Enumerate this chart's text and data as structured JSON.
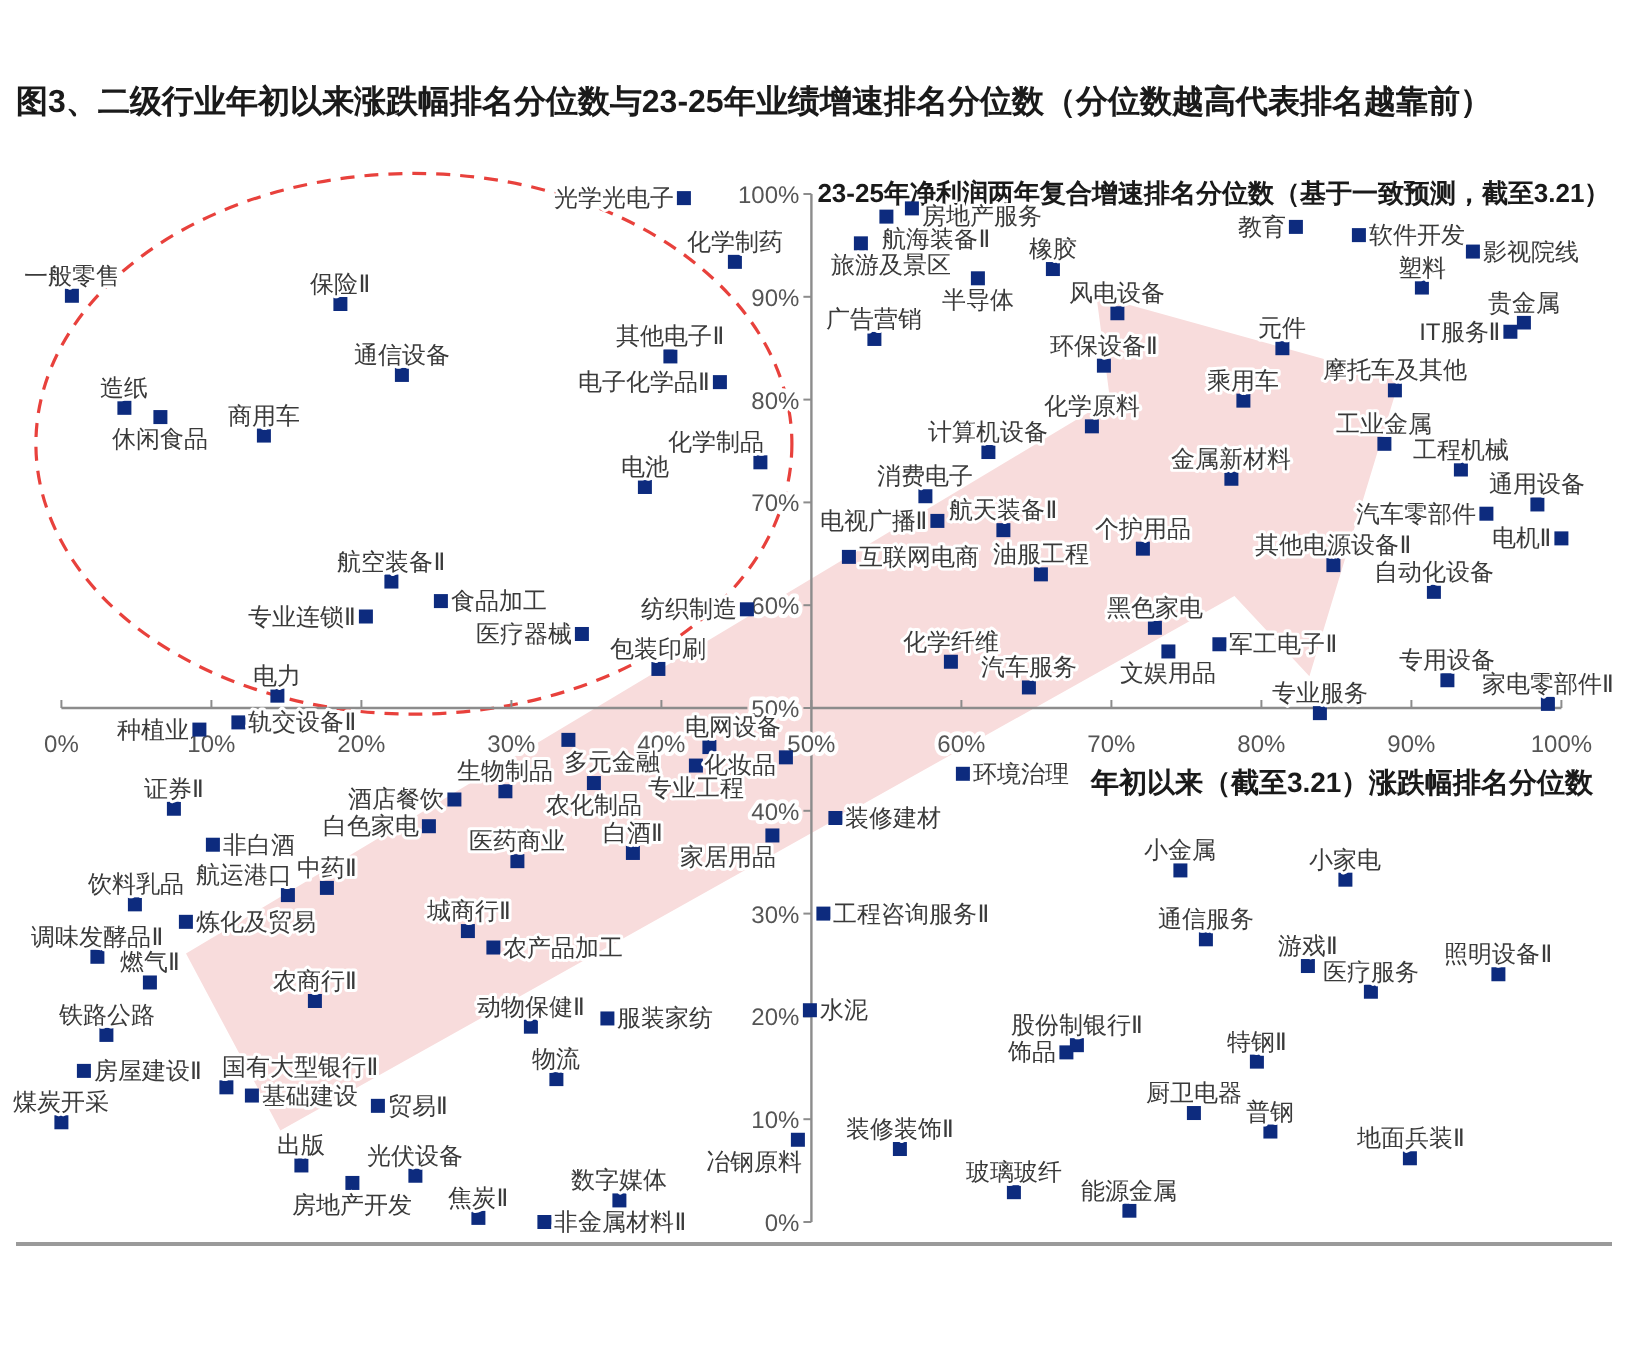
{
  "chart_data": {
    "type": "scatter",
    "title": "图3、二级行业年初以来涨跌幅排名分位数与23-25年业绩增速排名分位数（分位数越高代表排名越靠前）",
    "xlabel": "年初以来（截至3.21）涨跌幅排名分位数",
    "ylabel": "23-25年净利润两年复合增速排名分位数（基于一致预测，截至3.21）",
    "xlim": [
      0,
      100
    ],
    "ylim": [
      0,
      100
    ],
    "xticks": [
      {
        "value": 0,
        "label": "0%"
      },
      {
        "value": 10,
        "label": "10%"
      },
      {
        "value": 20,
        "label": "20%"
      },
      {
        "value": 30,
        "label": "30%"
      },
      {
        "value": 40,
        "label": "40%"
      },
      {
        "value": 50,
        "label": "50%"
      },
      {
        "value": 60,
        "label": "60%"
      },
      {
        "value": 70,
        "label": "70%"
      },
      {
        "value": 80,
        "label": "80%"
      },
      {
        "value": 90,
        "label": "90%"
      },
      {
        "value": 100,
        "label": "100%"
      }
    ],
    "yticks": [
      {
        "value": 0,
        "label": "0%"
      },
      {
        "value": 10,
        "label": "10%"
      },
      {
        "value": 20,
        "label": "20%"
      },
      {
        "value": 30,
        "label": "30%"
      },
      {
        "value": 40,
        "label": "40%"
      },
      {
        "value": 50,
        "label": "50%"
      },
      {
        "value": 60,
        "label": "60%"
      },
      {
        "value": 70,
        "label": "70%"
      },
      {
        "value": 80,
        "label": "80%"
      },
      {
        "value": 90,
        "label": "90%"
      },
      {
        "value": 100,
        "label": "100%"
      }
    ],
    "marker": "square",
    "color": "#0d2b7e",
    "x": [
      0.7,
      18.6,
      22.7,
      4.2,
      6.6,
      13.5,
      22.0,
      25.3,
      20.3,
      14.4,
      34.7,
      39.8,
      45.7,
      38.9,
      46.6,
      40.6,
      43.9,
      44.9,
      41.5,
      55.0,
      56.7,
      53.3,
      61.1,
      66.1,
      54.2,
      70.4,
      69.5,
      68.7,
      61.8,
      57.6,
      58.4,
      52.5,
      62.8,
      65.3,
      59.3,
      64.5,
      73.8,
      72.9,
      72.1,
      78.0,
      78.8,
      81.4,
      82.3,
      86.5,
      94.1,
      90.7,
      97.5,
      96.6,
      88.9,
      88.2,
      93.3,
      98.4,
      95.0,
      100,
      84.8,
      91.5,
      77.2,
      83.9,
      92.4,
      99.1,
      9.2,
      11.8,
      33.8,
      43.2,
      48.3,
      42.3,
      35.5,
      7.5,
      10.1,
      26.2,
      29.6,
      24.5,
      30.4,
      38.1,
      47.4,
      4.9,
      8.3,
      15.1,
      17.7,
      2.4,
      5.9,
      27.1,
      28.8,
      16.9,
      3.0,
      31.3,
      36.4,
      1.5,
      11.0,
      12.7,
      21.1,
      33.0,
      0,
      16.0,
      19.4,
      23.6,
      27.8,
      32.2,
      37.2,
      51.6,
      60.1,
      50.8,
      49.9,
      49.1,
      55.9,
      63.5,
      67.0,
      67.7,
      74.6,
      85.6,
      76.3,
      83.1,
      87.3,
      95.8,
      79.7,
      75.5,
      80.6,
      89.9,
      71.2
    ],
    "values": [
      90.1,
      89.3,
      82.4,
      79.2,
      78.3,
      76.5,
      62.3,
      60.4,
      58.9,
      51.2,
      57.2,
      53.8,
      59.6,
      71.5,
      73.9,
      84.2,
      81.7,
      93.4,
      99.6,
      97.8,
      98.6,
      95.2,
      91.8,
      92.7,
      85.9,
      88.4,
      83.3,
      77.4,
      74.9,
      70.6,
      68.2,
      64.7,
      67.3,
      63.0,
      54.5,
      52.0,
      55.5,
      57.8,
      65.5,
      72.3,
      79.9,
      85.0,
      96.8,
      96.0,
      94.4,
      90.9,
      87.5,
      86.6,
      80.9,
      75.7,
      73.2,
      69.8,
      68.9,
      66.5,
      63.9,
      61.3,
      56.2,
      49.5,
      52.7,
      50.4,
      47.9,
      48.6,
      46.9,
      46.2,
      45.2,
      44.4,
      42.7,
      40.2,
      36.7,
      41.1,
      41.9,
      38.5,
      35.1,
      35.9,
      37.6,
      30.9,
      29.2,
      31.8,
      32.5,
      25.8,
      23.3,
      28.3,
      26.7,
      21.5,
      18.2,
      19.0,
      19.8,
      14.7,
      13.1,
      12.3,
      11.3,
      13.9,
      9.7,
      5.5,
      3.8,
      4.5,
      0.4,
      0,
      2.1,
      39.3,
      43.6,
      30.0,
      20.6,
      8.0,
      7.1,
      2.9,
      16.5,
      17.2,
      34.2,
      33.3,
      27.5,
      24.9,
      22.4,
      24.1,
      15.6,
      10.6,
      8.8,
      6.2,
      1.1
    ],
    "annotations": [
      {
        "text": "一般零售",
        "x": 0.7,
        "y": 90.1
      },
      {
        "text": "保险Ⅱ",
        "x": 18.6,
        "y": 89.3
      },
      {
        "text": "通信设备",
        "x": 22.7,
        "y": 82.4
      },
      {
        "text": "造纸",
        "x": 4.2,
        "y": 79.2
      },
      {
        "text": "休闲食品",
        "x": 6.6,
        "y": 78.3
      },
      {
        "text": "商用车",
        "x": 13.5,
        "y": 76.5
      },
      {
        "text": "航空装备Ⅱ",
        "x": 22.0,
        "y": 62.3
      },
      {
        "text": "食品加工",
        "x": 25.3,
        "y": 60.4
      },
      {
        "text": "专业连锁Ⅱ",
        "x": 20.3,
        "y": 58.9
      },
      {
        "text": "电力",
        "x": 14.4,
        "y": 51.2
      },
      {
        "text": "医疗器械",
        "x": 34.7,
        "y": 57.2
      },
      {
        "text": "包装印刷",
        "x": 39.8,
        "y": 53.8
      },
      {
        "text": "纺织制造",
        "x": 45.7,
        "y": 59.6
      },
      {
        "text": "电池",
        "x": 38.9,
        "y": 71.5
      },
      {
        "text": "化学制品",
        "x": 46.6,
        "y": 73.9
      },
      {
        "text": "其他电子Ⅱ",
        "x": 40.6,
        "y": 84.2
      },
      {
        "text": "电子化学品Ⅱ",
        "x": 43.9,
        "y": 81.7
      },
      {
        "text": "化学制药",
        "x": 44.9,
        "y": 93.4
      },
      {
        "text": "光学光电子",
        "x": 41.5,
        "y": 99.6
      },
      {
        "text": "航海装备Ⅱ",
        "x": 55.0,
        "y": 97.8
      },
      {
        "text": "房地产服务",
        "x": 56.7,
        "y": 98.6
      },
      {
        "text": "旅游及景区",
        "x": 53.3,
        "y": 95.2
      },
      {
        "text": "半导体",
        "x": 61.1,
        "y": 91.8
      },
      {
        "text": "橡胶",
        "x": 66.1,
        "y": 92.7
      },
      {
        "text": "广告营销",
        "x": 54.2,
        "y": 85.9
      },
      {
        "text": "风电设备",
        "x": 70.4,
        "y": 88.4
      },
      {
        "text": "环保设备Ⅱ",
        "x": 69.5,
        "y": 83.3
      },
      {
        "text": "化学原料",
        "x": 68.7,
        "y": 77.4
      },
      {
        "text": "计算机设备",
        "x": 61.8,
        "y": 74.9
      },
      {
        "text": "消费电子",
        "x": 57.6,
        "y": 70.6
      },
      {
        "text": "电视广播Ⅱ",
        "x": 58.4,
        "y": 68.2
      },
      {
        "text": "互联网电商",
        "x": 52.5,
        "y": 64.7
      },
      {
        "text": "航天装备Ⅱ",
        "x": 62.8,
        "y": 67.3
      },
      {
        "text": "油服工程",
        "x": 65.3,
        "y": 63.0
      },
      {
        "text": "化学纤维",
        "x": 59.3,
        "y": 54.5
      },
      {
        "text": "汽车服务",
        "x": 64.5,
        "y": 52.0
      },
      {
        "text": "文娱用品",
        "x": 73.8,
        "y": 55.5
      },
      {
        "text": "黑色家电",
        "x": 72.9,
        "y": 57.8
      },
      {
        "text": "个护用品",
        "x": 72.1,
        "y": 65.5
      },
      {
        "text": "金属新材料",
        "x": 78.0,
        "y": 72.3
      },
      {
        "text": "乘用车",
        "x": 78.8,
        "y": 79.9
      },
      {
        "text": "元件",
        "x": 81.4,
        "y": 85.0
      },
      {
        "text": "教育",
        "x": 82.3,
        "y": 96.8
      },
      {
        "text": "软件开发",
        "x": 86.5,
        "y": 96.0
      },
      {
        "text": "影视院线",
        "x": 94.1,
        "y": 94.4
      },
      {
        "text": "塑料",
        "x": 90.7,
        "y": 90.9
      },
      {
        "text": "贵金属",
        "x": 97.5,
        "y": 87.5
      },
      {
        "text": "IT服务Ⅱ",
        "x": 96.6,
        "y": 86.6
      },
      {
        "text": "摩托车及其他",
        "x": 88.9,
        "y": 80.9
      },
      {
        "text": "工业金属",
        "x": 88.2,
        "y": 75.7
      },
      {
        "text": "工程机械",
        "x": 93.3,
        "y": 73.2
      },
      {
        "text": "通用设备",
        "x": 98.4,
        "y": 69.8
      },
      {
        "text": "汽车零部件",
        "x": 95.0,
        "y": 68.9
      },
      {
        "text": "电机Ⅱ",
        "x": 100,
        "y": 66.5
      },
      {
        "text": "其他电源设备Ⅱ",
        "x": 84.8,
        "y": 63.9
      },
      {
        "text": "自动化设备",
        "x": 91.5,
        "y": 61.3
      },
      {
        "text": "军工电子Ⅱ",
        "x": 77.2,
        "y": 56.2
      },
      {
        "text": "专业服务",
        "x": 83.9,
        "y": 49.5
      },
      {
        "text": "专用设备",
        "x": 92.4,
        "y": 52.7
      },
      {
        "text": "家电零部件Ⅱ",
        "x": 99.1,
        "y": 50.4
      },
      {
        "text": "种植业",
        "x": 9.2,
        "y": 47.9
      },
      {
        "text": "轨交设备Ⅱ",
        "x": 11.8,
        "y": 48.6
      },
      {
        "text": "多元金融",
        "x": 33.8,
        "y": 46.9
      },
      {
        "text": "电网设备",
        "x": 43.2,
        "y": 46.2
      },
      {
        "text": "化妆品",
        "x": 48.3,
        "y": 45.2
      },
      {
        "text": "专业工程",
        "x": 42.3,
        "y": 44.4
      },
      {
        "text": "农化制品",
        "x": 35.5,
        "y": 42.7
      },
      {
        "text": "证券Ⅱ",
        "x": 7.5,
        "y": 40.2
      },
      {
        "text": "非白酒",
        "x": 10.1,
        "y": 36.7
      },
      {
        "text": "酒店餐饮",
        "x": 26.2,
        "y": 41.1
      },
      {
        "text": "生物制品",
        "x": 29.6,
        "y": 41.9
      },
      {
        "text": "白色家电",
        "x": 24.5,
        "y": 38.5
      },
      {
        "text": "医药商业",
        "x": 30.4,
        "y": 35.1
      },
      {
        "text": "白酒Ⅱ",
        "x": 38.1,
        "y": 35.9
      },
      {
        "text": "家居用品",
        "x": 47.4,
        "y": 37.6
      },
      {
        "text": "饮料乳品",
        "x": 4.9,
        "y": 30.9
      },
      {
        "text": "炼化及贸易",
        "x": 8.3,
        "y": 29.2
      },
      {
        "text": "航运港口",
        "x": 15.1,
        "y": 31.8
      },
      {
        "text": "中药Ⅱ",
        "x": 17.7,
        "y": 32.5
      },
      {
        "text": "调味发酵品Ⅱ",
        "x": 2.4,
        "y": 25.8
      },
      {
        "text": "燃气Ⅱ",
        "x": 5.9,
        "y": 23.3
      },
      {
        "text": "城商行Ⅱ",
        "x": 27.1,
        "y": 28.3
      },
      {
        "text": "农产品加工",
        "x": 28.8,
        "y": 26.7
      },
      {
        "text": "农商行Ⅱ",
        "x": 16.9,
        "y": 21.5
      },
      {
        "text": "铁路公路",
        "x": 3.0,
        "y": 18.2
      },
      {
        "text": "动物保健Ⅱ",
        "x": 31.3,
        "y": 19.0
      },
      {
        "text": "服装家纺",
        "x": 36.4,
        "y": 19.8
      },
      {
        "text": "房屋建设Ⅱ",
        "x": 1.5,
        "y": 14.7
      },
      {
        "text": "国有大型银行Ⅱ",
        "x": 11.0,
        "y": 13.1
      },
      {
        "text": "基础建设",
        "x": 12.7,
        "y": 12.3
      },
      {
        "text": "贸易Ⅱ",
        "x": 21.1,
        "y": 11.3
      },
      {
        "text": "物流",
        "x": 33.0,
        "y": 13.9
      },
      {
        "text": "煤炭开采",
        "x": 0,
        "y": 9.7
      },
      {
        "text": "出版",
        "x": 16.0,
        "y": 5.5
      },
      {
        "text": "房地产开发",
        "x": 19.4,
        "y": 3.8
      },
      {
        "text": "光伏设备",
        "x": 23.6,
        "y": 4.5
      },
      {
        "text": "焦炭Ⅱ",
        "x": 27.8,
        "y": 0.4
      },
      {
        "text": "非金属材料Ⅱ",
        "x": 32.2,
        "y": 0
      },
      {
        "text": "数字媒体",
        "x": 37.2,
        "y": 2.1
      },
      {
        "text": "装修建材",
        "x": 51.6,
        "y": 39.3
      },
      {
        "text": "环境治理",
        "x": 60.1,
        "y": 43.6
      },
      {
        "text": "工程咨询服务Ⅱ",
        "x": 50.8,
        "y": 30.0
      },
      {
        "text": "水泥",
        "x": 49.9,
        "y": 20.6
      },
      {
        "text": "冶钢原料",
        "x": 49.1,
        "y": 8.0
      },
      {
        "text": "装修装饰Ⅱ",
        "x": 55.9,
        "y": 7.1
      },
      {
        "text": "玻璃玻纤",
        "x": 63.5,
        "y": 2.9
      },
      {
        "text": "饰品",
        "x": 67.0,
        "y": 16.5
      },
      {
        "text": "股份制银行Ⅱ",
        "x": 67.7,
        "y": 17.2
      },
      {
        "text": "小金属",
        "x": 74.6,
        "y": 34.2
      },
      {
        "text": "小家电",
        "x": 85.6,
        "y": 33.3
      },
      {
        "text": "通信服务",
        "x": 76.3,
        "y": 27.5
      },
      {
        "text": "游戏Ⅱ",
        "x": 83.1,
        "y": 24.9
      },
      {
        "text": "医疗服务",
        "x": 87.3,
        "y": 22.4
      },
      {
        "text": "照明设备Ⅱ",
        "x": 95.8,
        "y": 24.1
      },
      {
        "text": "特钢Ⅱ",
        "x": 79.7,
        "y": 15.6
      },
      {
        "text": "厨卫电器",
        "x": 75.5,
        "y": 10.6
      },
      {
        "text": "普钢",
        "x": 80.6,
        "y": 8.8
      },
      {
        "text": "地面兵装Ⅱ",
        "x": 89.9,
        "y": 6.2
      },
      {
        "text": "能源金属",
        "x": 71.2,
        "y": 1.1
      }
    ]
  }
}
